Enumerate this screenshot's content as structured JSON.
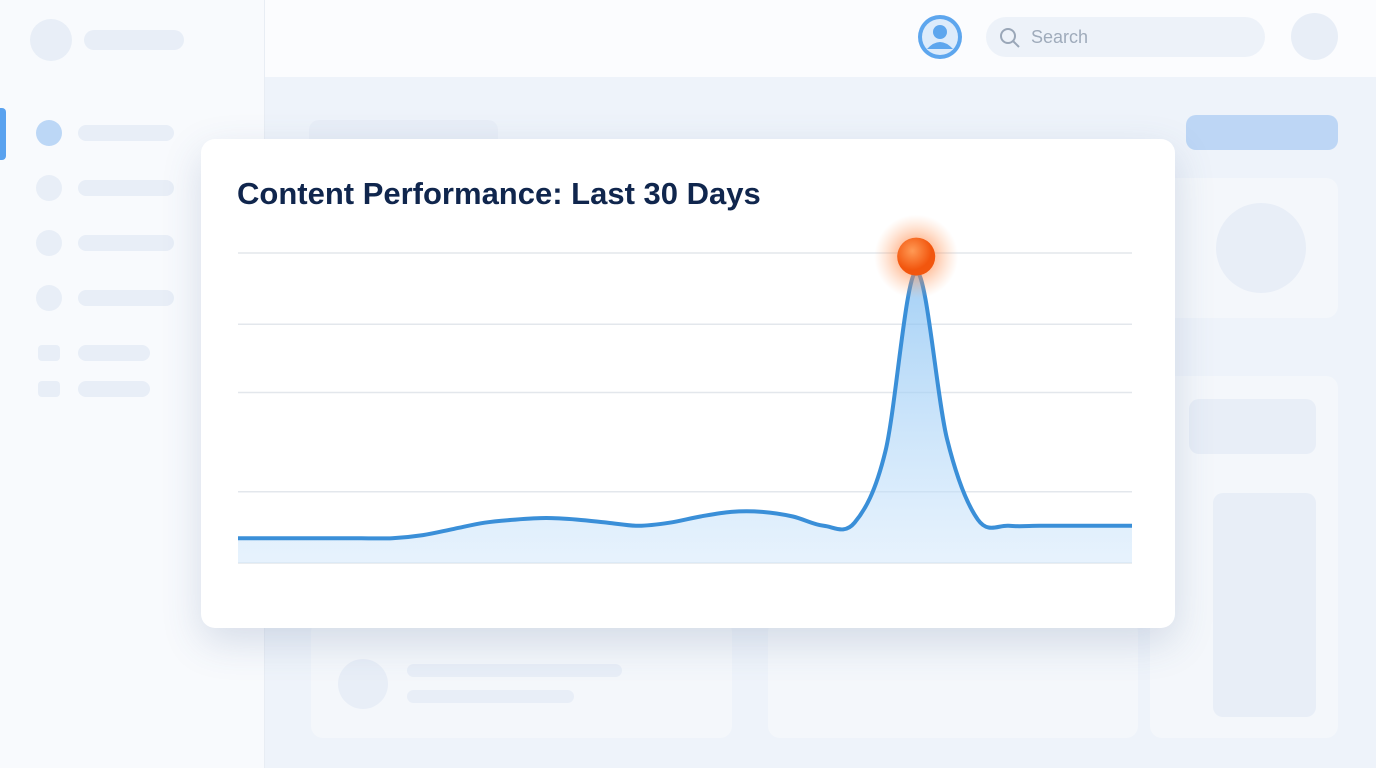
{
  "search": {
    "placeholder": "Search"
  },
  "chart_data": {
    "type": "line",
    "title": "Content Performance: Last 30 Days",
    "categories": [
      null,
      null,
      null,
      null,
      null,
      null,
      null,
      null,
      null,
      null,
      null,
      null,
      null,
      null,
      null,
      null,
      null,
      null,
      null,
      null,
      null,
      null,
      null,
      null,
      null,
      null,
      null,
      null,
      null,
      null
    ],
    "values": [
      8,
      8,
      8,
      8,
      8,
      8,
      9,
      11,
      13,
      14,
      14.5,
      14,
      13,
      12,
      13,
      15,
      16.5,
      16.5,
      15,
      12,
      13,
      36,
      94,
      40,
      14,
      12,
      12,
      12,
      12,
      12
    ],
    "color": "#3a8fd8",
    "highlight_color": "#ff6a1a",
    "ylim": [
      0,
      100
    ],
    "yticks": [
      0,
      23,
      55,
      77,
      100
    ],
    "grid": true
  }
}
